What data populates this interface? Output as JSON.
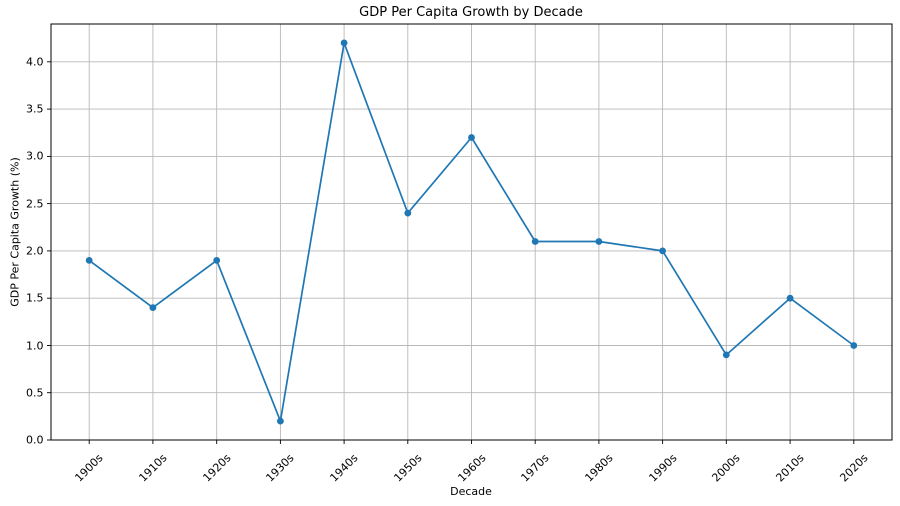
{
  "chart_data": {
    "type": "line",
    "title": "GDP Per Capita Growth by Decade",
    "xlabel": "Decade",
    "ylabel": "GDP Per Capita Growth (%)",
    "categories": [
      "1900s",
      "1910s",
      "1920s",
      "1930s",
      "1940s",
      "1950s",
      "1960s",
      "1970s",
      "1980s",
      "1990s",
      "2000s",
      "2010s",
      "2020s"
    ],
    "values": [
      1.9,
      1.4,
      1.9,
      0.2,
      4.2,
      2.4,
      3.2,
      2.1,
      2.1,
      2.0,
      0.9,
      1.5,
      1.0
    ],
    "y_ticks": [
      0.0,
      0.5,
      1.0,
      1.5,
      2.0,
      2.5,
      3.0,
      3.5,
      4.0
    ],
    "y_tick_labels": [
      "0.0",
      "0.5",
      "1.0",
      "1.5",
      "2.0",
      "2.5",
      "3.0",
      "3.5",
      "4.0"
    ],
    "ylim": [
      0,
      4.4
    ],
    "grid": true,
    "legend_position": "none",
    "x_tick_rotation_deg": 45,
    "marker": "circle",
    "line_color": "#1f77b4",
    "grid_color": "#b8b8b8",
    "spine_color": "#000000",
    "text_color": "#000000",
    "background_color": "#ffffff"
  }
}
